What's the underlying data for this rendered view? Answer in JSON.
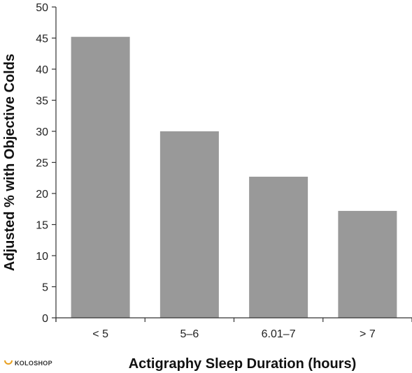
{
  "chart_data": {
    "type": "bar",
    "categories": [
      "< 5",
      "5–6",
      "6.01–7",
      "> 7"
    ],
    "values": [
      45.2,
      30.0,
      22.7,
      17.2
    ],
    "xlabel": "Actigraphy Sleep Duration (hours)",
    "ylabel": "Adjusted % with Objective Colds",
    "ylim": [
      0,
      50
    ],
    "yticks": [
      0,
      5,
      10,
      15,
      20,
      25,
      30,
      35,
      40,
      45,
      50
    ],
    "grid": false,
    "colors": {
      "bar": "#999999",
      "axis": "#333333"
    }
  },
  "watermark": {
    "text": "KOLOSHOP",
    "color": "#e8a020"
  }
}
